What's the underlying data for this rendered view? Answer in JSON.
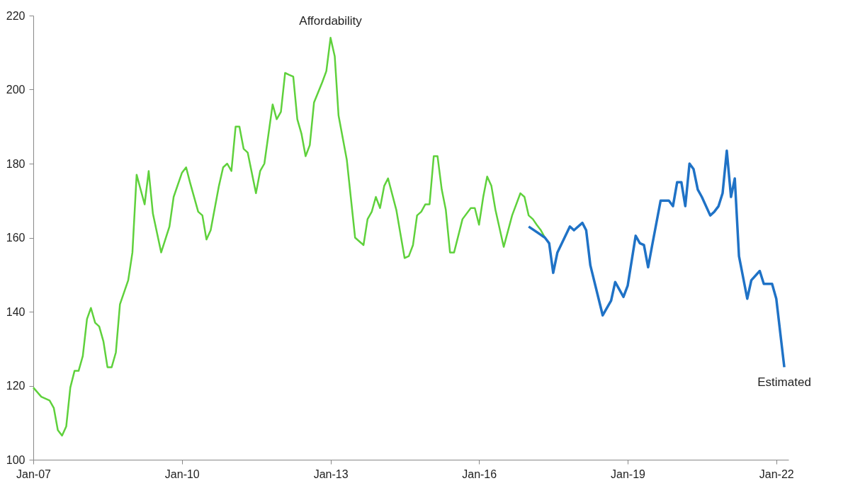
{
  "chart_data": {
    "type": "line",
    "xlim": [
      "2007-01",
      "2022-04"
    ],
    "xticks": [
      {
        "value": "2007-01",
        "label": "Jan-07"
      },
      {
        "value": "2010-01",
        "label": "Jan-10"
      },
      {
        "value": "2013-01",
        "label": "Jan-13"
      },
      {
        "value": "2016-01",
        "label": "Jan-16"
      },
      {
        "value": "2019-01",
        "label": "Jan-19"
      },
      {
        "value": "2022-01",
        "label": "Jan-22"
      }
    ],
    "ylim": [
      100,
      220
    ],
    "yticks": [
      100,
      120,
      140,
      160,
      180,
      200,
      220
    ],
    "grid": false,
    "legend": false,
    "marker": "none",
    "line_style": "solid",
    "series": [
      {
        "name": "Affordability",
        "color": "#5fd13c",
        "x": [
          "2007-01",
          "2007-03",
          "2007-05",
          "2007-06",
          "2007-07",
          "2007-08",
          "2007-09",
          "2007-10",
          "2007-11",
          "2007-12",
          "2008-01",
          "2008-02",
          "2008-03",
          "2008-04",
          "2008-05",
          "2008-06",
          "2008-07",
          "2008-08",
          "2008-09",
          "2008-10",
          "2008-12",
          "2009-01",
          "2009-02",
          "2009-04",
          "2009-05",
          "2009-06",
          "2009-08",
          "2009-10",
          "2009-11",
          "2010-01",
          "2010-02",
          "2010-03",
          "2010-05",
          "2010-06",
          "2010-07",
          "2010-08",
          "2010-10",
          "2010-11",
          "2010-12",
          "2011-01",
          "2011-02",
          "2011-03",
          "2011-04",
          "2011-05",
          "2011-07",
          "2011-08",
          "2011-09",
          "2011-11",
          "2011-12",
          "2012-01",
          "2012-02",
          "2012-03",
          "2012-04",
          "2012-05",
          "2012-06",
          "2012-07",
          "2012-08",
          "2012-09",
          "2012-11",
          "2012-12",
          "2013-01",
          "2013-02",
          "2013-03",
          "2013-05",
          "2013-07",
          "2013-09",
          "2013-10",
          "2013-11",
          "2013-12",
          "2014-01",
          "2014-02",
          "2014-03",
          "2014-05",
          "2014-07",
          "2014-08",
          "2014-09",
          "2014-10",
          "2014-11",
          "2014-12",
          "2015-01",
          "2015-02",
          "2015-03",
          "2015-04",
          "2015-05",
          "2015-06",
          "2015-07",
          "2015-09",
          "2015-11",
          "2015-12",
          "2016-01",
          "2016-02",
          "2016-03",
          "2016-04",
          "2016-05",
          "2016-07",
          "2016-09",
          "2016-11",
          "2016-12",
          "2017-01",
          "2017-02",
          "2017-03",
          "2017-04",
          "2017-05"
        ],
        "values": [
          119.5,
          117,
          116,
          114,
          108,
          106.5,
          109,
          119.5,
          124,
          124,
          128,
          138,
          141,
          137,
          136,
          132,
          125,
          125,
          129,
          142,
          148.5,
          156,
          177,
          169,
          178,
          166.5,
          156,
          163,
          171,
          177.5,
          179,
          175,
          167,
          166,
          159.5,
          162,
          174,
          179,
          180,
          178,
          190,
          190,
          184,
          183,
          172,
          178,
          180,
          196,
          192,
          194,
          204.5,
          204,
          203.5,
          192,
          188,
          182,
          185,
          196.5,
          202,
          205,
          214,
          209,
          193,
          181,
          160,
          158,
          165,
          167,
          171,
          168,
          174,
          176,
          167.5,
          154.5,
          155,
          158,
          166,
          167,
          169,
          169,
          182,
          182,
          173,
          167.5,
          156,
          156,
          165,
          168,
          168,
          163.5,
          171,
          176.5,
          174,
          167.5,
          157.5,
          166,
          172,
          171,
          166,
          165,
          163.5,
          162,
          160
        ]
      },
      {
        "name": "Estimated",
        "color": "#1f72c6",
        "x": [
          "2017-01",
          "2017-05",
          "2017-06",
          "2017-07",
          "2017-08",
          "2017-11",
          "2017-12",
          "2018-02",
          "2018-03",
          "2018-04",
          "2018-07",
          "2018-09",
          "2018-10",
          "2018-12",
          "2019-01",
          "2019-03",
          "2019-04",
          "2019-05",
          "2019-06",
          "2019-07",
          "2019-09",
          "2019-11",
          "2019-12",
          "2020-01",
          "2020-02",
          "2020-03",
          "2020-04",
          "2020-05",
          "2020-06",
          "2020-07",
          "2020-09",
          "2020-10",
          "2020-11",
          "2020-12",
          "2021-01",
          "2021-02",
          "2021-03",
          "2021-04",
          "2021-06",
          "2021-07",
          "2021-09",
          "2021-10",
          "2021-12",
          "2022-01",
          "2022-03"
        ],
        "values": [
          163,
          160,
          158.5,
          150.5,
          156,
          163,
          162,
          164,
          162,
          152.5,
          139,
          143,
          148,
          144,
          147,
          160.5,
          158.5,
          158,
          152,
          158,
          170,
          170,
          168.5,
          175,
          175,
          168.5,
          180,
          178.5,
          173,
          171,
          166,
          167,
          168.5,
          172,
          183.5,
          171,
          176,
          155,
          143.5,
          148.5,
          151,
          147.5,
          147.5,
          143.5,
          125
        ]
      }
    ]
  }
}
